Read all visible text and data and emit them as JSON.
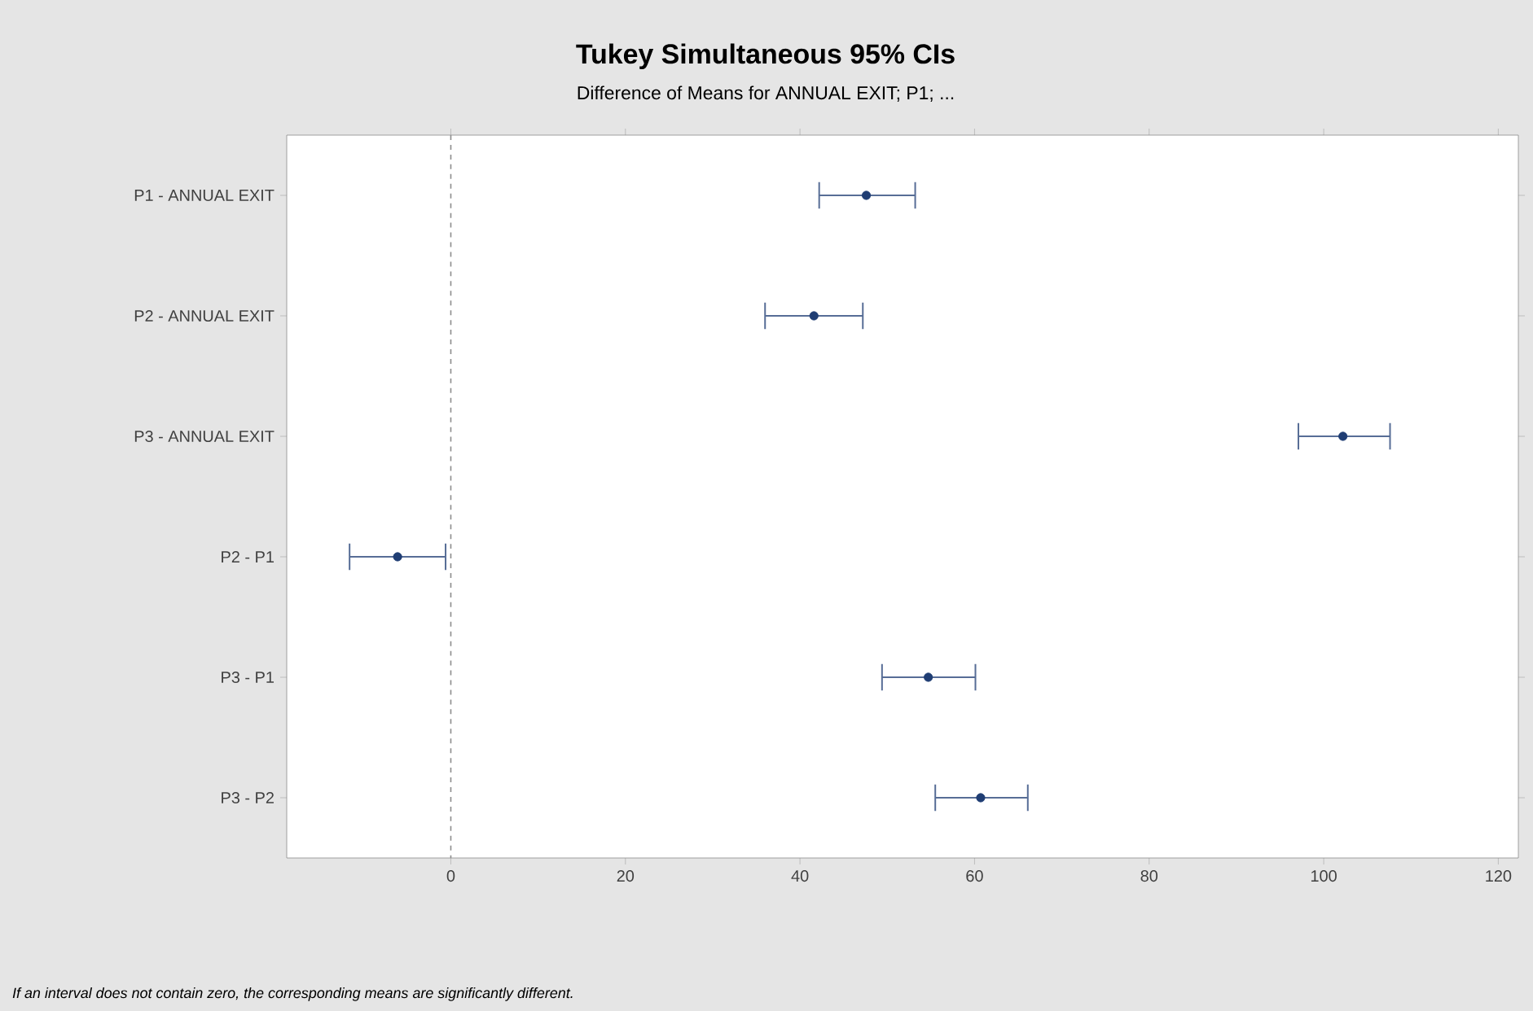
{
  "chart_data": {
    "type": "scatter",
    "orientation": "horizontal",
    "title": "Tukey Simultaneous 95% CIs",
    "subtitle": "Difference of Means for ANNUAL EXIT; P1; ...",
    "categories": [
      "P1 - ANNUAL EXIT",
      "P2 - ANNUAL EXIT",
      "P3 - ANNUAL EXIT",
      "P2 - P1",
      "P3 - P1",
      "P3 - P2"
    ],
    "values": [
      47.6,
      41.6,
      102.2,
      -6.1,
      54.7,
      60.7
    ],
    "errors": [
      [
        42.2,
        53.2
      ],
      [
        36.0,
        47.2
      ],
      [
        97.1,
        107.6
      ],
      [
        -11.6,
        -0.6
      ],
      [
        49.4,
        60.1
      ],
      [
        55.5,
        66.1
      ]
    ],
    "color": "#1f3d73",
    "xlim": [
      -18.8,
      122.3
    ],
    "xticks": [
      0,
      20,
      40,
      60,
      80,
      100,
      120
    ],
    "ref_lines": [
      {
        "axis": "x",
        "value": 0,
        "color": "#8c8c8c",
        "line_style": "dashed"
      }
    ],
    "grid": false,
    "annotations": [
      "*If an interval does not contain zero, the corresponding means are significantly different.*"
    ]
  }
}
